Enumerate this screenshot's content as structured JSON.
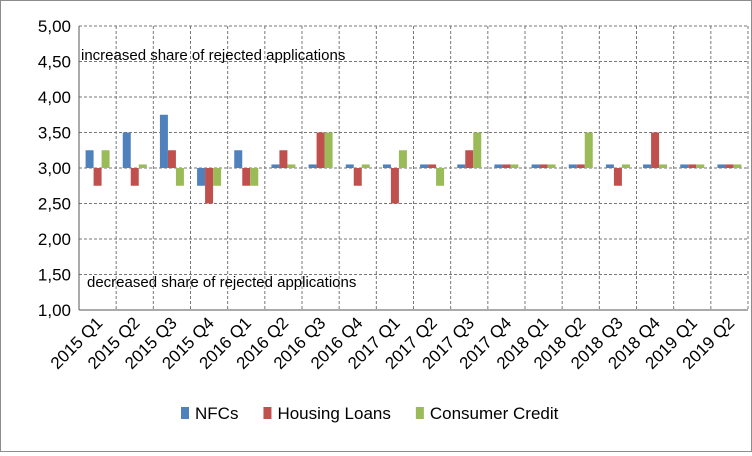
{
  "chart_data": {
    "type": "bar",
    "categories": [
      "2015 Q1",
      "2015 Q2",
      "2015 Q3",
      "2015 Q4",
      "2016 Q1",
      "2016 Q2",
      "2016 Q3",
      "2016 Q4",
      "2017 Q1",
      "2017 Q2",
      "2017 Q3",
      "2017 Q4",
      "2018 Q1",
      "2018 Q2",
      "2018 Q3",
      "2018 Q4",
      "2019 Q1",
      "2019 Q2"
    ],
    "series": [
      {
        "name": "NFCs",
        "color": "#4f81bd",
        "values": [
          3.25,
          3.5,
          3.75,
          2.75,
          3.25,
          3.05,
          3.05,
          3.05,
          3.05,
          3.05,
          3.05,
          3.05,
          3.05,
          3.05,
          3.05,
          3.05,
          3.05,
          3.05
        ]
      },
      {
        "name": "Housing Loans",
        "color": "#c0504d",
        "values": [
          2.75,
          2.75,
          3.25,
          2.5,
          2.75,
          3.25,
          3.5,
          2.75,
          2.5,
          3.05,
          3.25,
          3.05,
          3.05,
          3.05,
          2.75,
          3.5,
          3.05,
          3.05
        ]
      },
      {
        "name": "Consumer Credit",
        "color": "#9bbb59",
        "values": [
          3.25,
          3.05,
          2.75,
          2.75,
          2.75,
          3.05,
          3.5,
          3.05,
          3.25,
          2.75,
          3.5,
          3.05,
          3.05,
          3.5,
          3.05,
          3.05,
          3.05,
          3.05
        ]
      }
    ],
    "baseline": 3.0,
    "ylim": [
      1.0,
      5.0
    ],
    "yticks": [
      "1,00",
      "1,50",
      "2,00",
      "2,50",
      "3,00",
      "3,50",
      "4,00",
      "4,50",
      "5,00"
    ],
    "grid": true,
    "legend_position": "bottom",
    "annotations": {
      "top": "increased  share of rejected applications",
      "bottom": "decreased share of rejected applications"
    }
  }
}
